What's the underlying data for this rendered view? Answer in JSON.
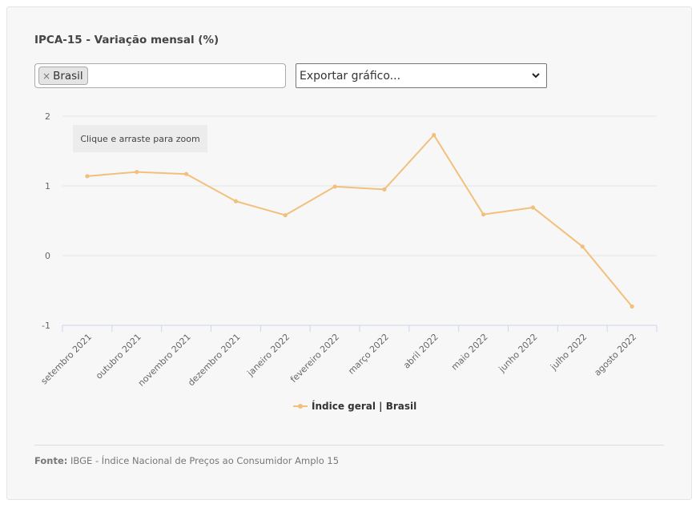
{
  "title": "IPCA-15 - Variação mensal (%)",
  "filter": {
    "tag_label": "Brasil",
    "remove_glyph": "×"
  },
  "export": {
    "selected": "Exportar gráfico..."
  },
  "zoom_hint": "Clique e arraste para zoom",
  "legend_label": "Índice geral | Brasil",
  "source": {
    "label": "Fonte:",
    "text": "IBGE - Índice Nacional de Preços ao Consumidor Amplo 15"
  },
  "colors": {
    "series": "#f2c07c",
    "grid": "#e6e6e6",
    "axis": "#ccd6eb",
    "text": "#666666"
  },
  "chart_data": {
    "type": "line",
    "title": "IPCA-15 - Variação mensal (%)",
    "xlabel": "",
    "ylabel": "",
    "categories": [
      "setembro 2021",
      "outubro 2021",
      "novembro 2021",
      "dezembro 2021",
      "janeiro 2022",
      "fevereiro 2022",
      "março 2022",
      "abril 2022",
      "maio 2022",
      "junho 2022",
      "julho 2022",
      "agosto 2022"
    ],
    "series": [
      {
        "name": "Índice geral | Brasil",
        "values": [
          1.14,
          1.2,
          1.17,
          0.78,
          0.58,
          0.99,
          0.95,
          1.73,
          0.59,
          0.69,
          0.13,
          -0.73
        ]
      }
    ],
    "ylim": [
      -1,
      2
    ],
    "yticks": [
      2,
      1,
      0,
      -1
    ],
    "grid": true,
    "legend": "bottom-center"
  }
}
